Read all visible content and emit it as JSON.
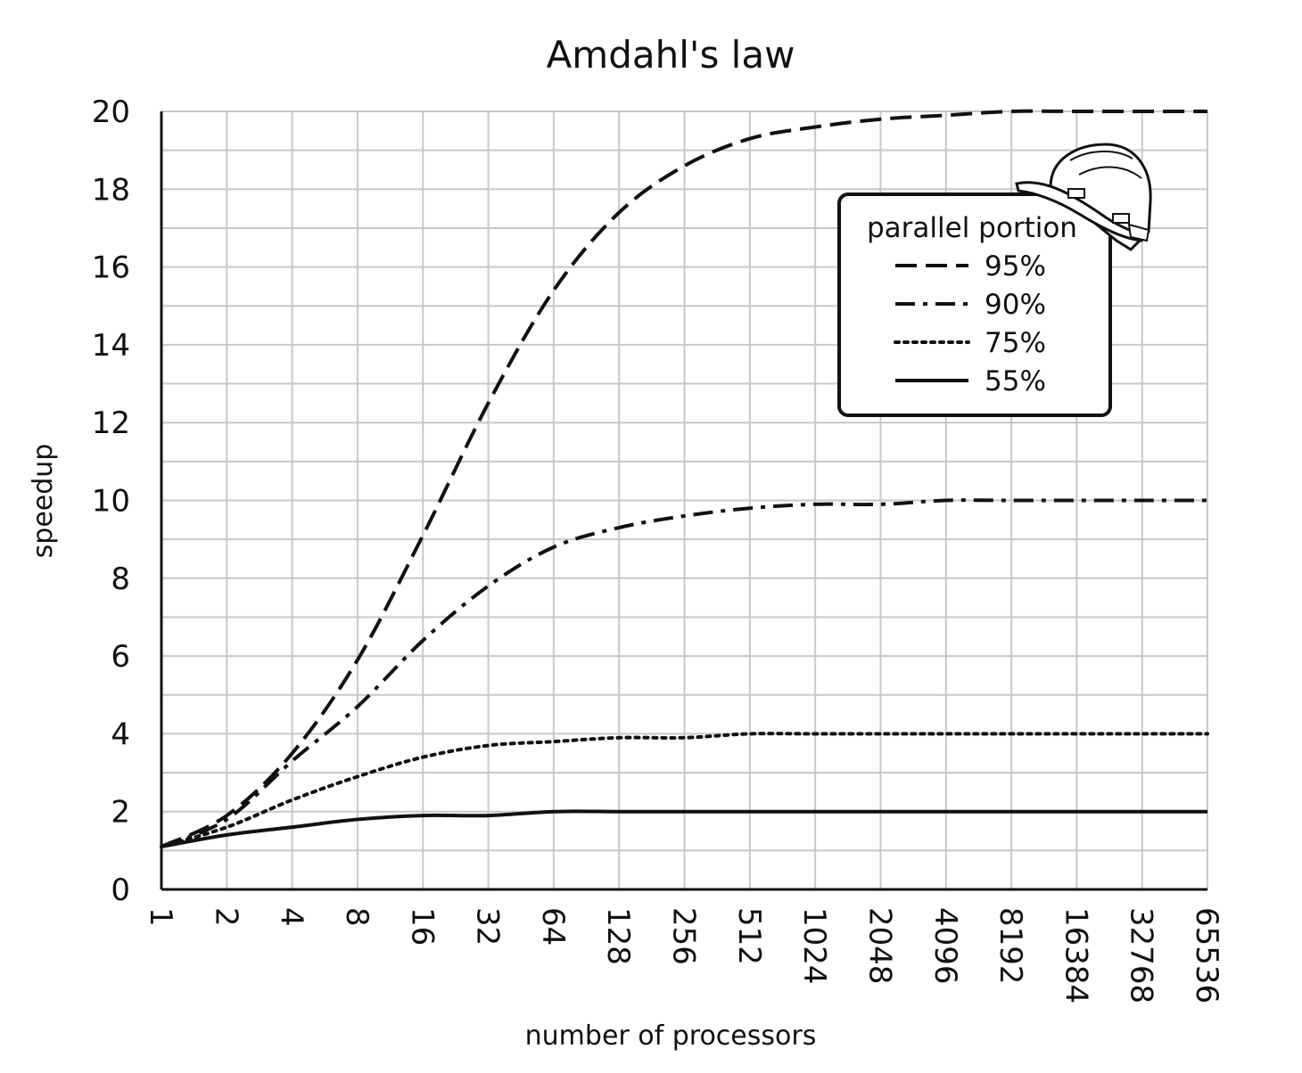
{
  "chart_data": {
    "type": "line",
    "title": "Amdahl's law",
    "xlabel": "number of processors",
    "ylabel": "speedup",
    "x_scale": "log2",
    "x": [
      1,
      2,
      4,
      8,
      16,
      32,
      64,
      128,
      256,
      512,
      1024,
      2048,
      4096,
      8192,
      16384,
      32768,
      65536
    ],
    "x_tick_labels": [
      "1",
      "2",
      "4",
      "8",
      "16",
      "32",
      "64",
      "128",
      "256",
      "512",
      "1024",
      "2048",
      "4096",
      "8192",
      "16384",
      "32768",
      "65536"
    ],
    "ylim": [
      0,
      20
    ],
    "y_ticks": [
      0,
      2,
      4,
      6,
      8,
      10,
      12,
      14,
      16,
      18,
      20
    ],
    "y_tick_labels": [
      "0",
      "2",
      "4",
      "6",
      "8",
      "10",
      "12",
      "14",
      "16",
      "18",
      "20"
    ],
    "grid": true,
    "legend": {
      "title": "parallel portion",
      "position": "top-right"
    },
    "series": [
      {
        "name": "95%",
        "style": "dashed",
        "values": [
          1.1,
          1.9,
          3.5,
          5.9,
          9.1,
          12.5,
          15.4,
          17.4,
          18.6,
          19.3,
          19.6,
          19.8,
          19.9,
          20.0,
          20.0,
          20.0,
          20.0
        ]
      },
      {
        "name": "90%",
        "style": "dash-dot",
        "values": [
          1.1,
          1.8,
          3.3,
          4.7,
          6.4,
          7.8,
          8.8,
          9.3,
          9.6,
          9.8,
          9.9,
          9.9,
          10.0,
          10.0,
          10.0,
          10.0,
          10.0
        ]
      },
      {
        "name": "75%",
        "style": "dotted",
        "values": [
          1.1,
          1.6,
          2.3,
          2.9,
          3.4,
          3.7,
          3.8,
          3.9,
          3.9,
          4.0,
          4.0,
          4.0,
          4.0,
          4.0,
          4.0,
          4.0,
          4.0
        ]
      },
      {
        "name": "55%",
        "style": "solid",
        "values": [
          1.1,
          1.4,
          1.6,
          1.8,
          1.9,
          1.9,
          2.0,
          2.0,
          2.0,
          2.0,
          2.0,
          2.0,
          2.0,
          2.0,
          2.0,
          2.0,
          2.0
        ]
      }
    ]
  },
  "icons": {
    "legend_decoration": "hard-hat-icon"
  }
}
